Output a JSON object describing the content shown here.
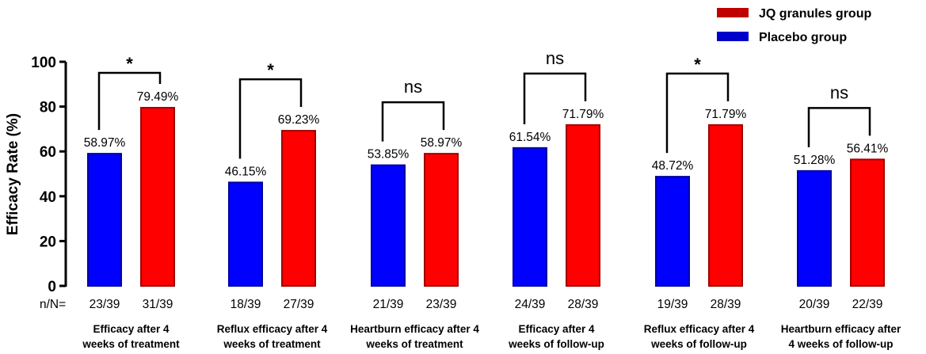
{
  "chart_data": {
    "type": "bar",
    "ylabel": "Efficacy Rate (%)",
    "ylim": [
      0,
      100
    ],
    "yticks": [
      0,
      20,
      40,
      60,
      80,
      100
    ],
    "nn_prefix": "n/N=",
    "categories": [
      [
        "Efficacy after 4",
        "weeks of treatment"
      ],
      [
        "Reflux efficacy after 4",
        "weeks of treatment"
      ],
      [
        "Heartburn efficacy after 4",
        "weeks of treatment"
      ],
      [
        "Efficacy after 4",
        "weeks of follow-up"
      ],
      [
        "Reflux efficacy after 4",
        "weeks of follow-up"
      ],
      [
        "Heartburn efficacy after",
        "4 weeks of follow-up"
      ]
    ],
    "series": [
      {
        "name": "Placebo group",
        "color": "#0000ff",
        "values": [
          58.97,
          46.15,
          53.85,
          61.54,
          48.72,
          51.28
        ],
        "labels": [
          "58.97%",
          "46.15%",
          "53.85%",
          "61.54%",
          "48.72%",
          "51.28%"
        ],
        "nn": [
          "23/39",
          "18/39",
          "21/39",
          "24/39",
          "19/39",
          "20/39"
        ]
      },
      {
        "name": "JQ granules group",
        "color": "#ff0000",
        "values": [
          79.49,
          69.23,
          58.97,
          71.79,
          71.79,
          56.41
        ],
        "labels": [
          "79.49%",
          "69.23%",
          "58.97%",
          "71.79%",
          "71.79%",
          "56.41%"
        ],
        "nn": [
          "31/39",
          "27/39",
          "23/39",
          "28/39",
          "28/39",
          "22/39"
        ]
      }
    ],
    "significance": [
      "*",
      "*",
      "ns",
      "ns",
      "*",
      "ns"
    ],
    "legend": {
      "position": "top-right",
      "entries": [
        {
          "name": "JQ granules group",
          "color": "#c00000"
        },
        {
          "name": "Placebo group",
          "color": "#0000cc"
        }
      ]
    }
  }
}
